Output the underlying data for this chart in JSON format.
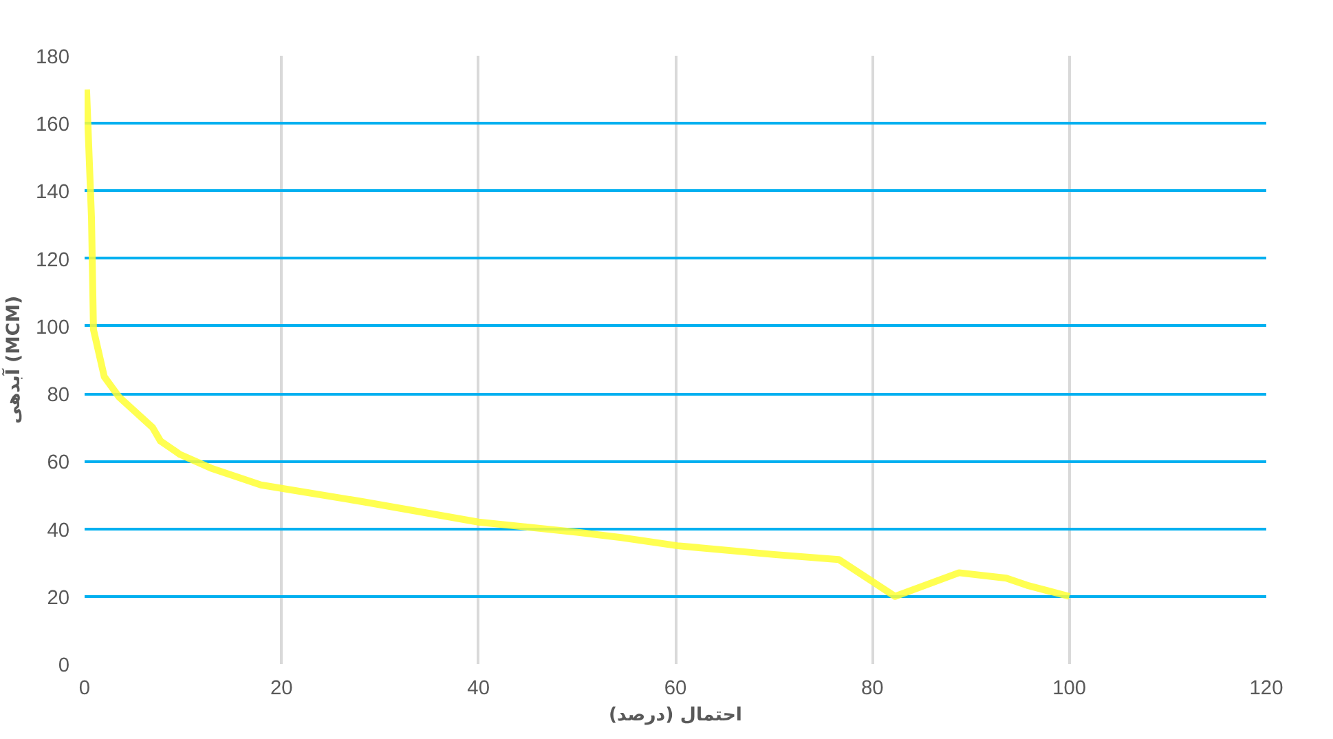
{
  "chart_data": {
    "type": "line",
    "xlabel": "احتمال (درصد)",
    "ylabel": "آبدهی (MCM)",
    "x": [
      0.2,
      0.7,
      0.9,
      2,
      3.5,
      6.9,
      7.7,
      9.7,
      12.8,
      17.9,
      28.3,
      40,
      50,
      54.5,
      60.2,
      70,
      76.6,
      82.3,
      88.8,
      93.6,
      95.7,
      100
    ],
    "series": [
      {
        "color": "#ffff33",
        "values": [
          170,
          132,
          99,
          85,
          79,
          70,
          66,
          62,
          58,
          53,
          48,
          42,
          39,
          37.4,
          35,
          32.4,
          30.9,
          20,
          27,
          25.4,
          23.3,
          20
        ]
      }
    ],
    "xlim": [
      0,
      120
    ],
    "ylim": [
      0,
      180
    ],
    "xticks": [
      0,
      20,
      40,
      60,
      80,
      100,
      120
    ],
    "yticks": [
      0,
      20,
      40,
      60,
      80,
      100,
      120,
      140,
      160,
      180
    ],
    "grid": true,
    "marker": "none",
    "line_style": "solid"
  }
}
